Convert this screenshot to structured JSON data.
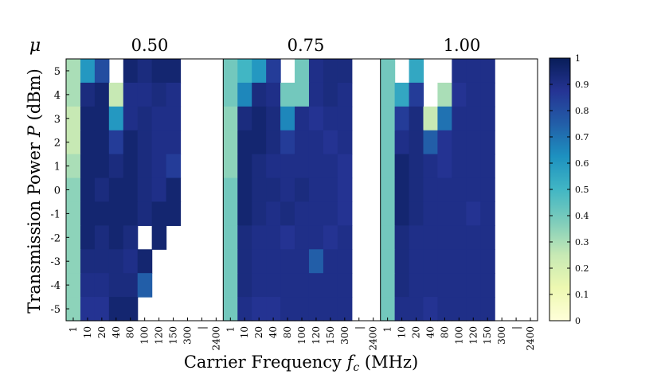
{
  "chart_data": {
    "type": "heatmap",
    "ylabel": "Transmission Power P (dBm)",
    "xlabel": "Carrier Frequency f_c (MHz)",
    "y_ticks": [
      "5",
      "4",
      "3",
      "2",
      "1",
      "0",
      "-1",
      "-2",
      "-3",
      "-4",
      "-5"
    ],
    "x_ticks": [
      "1",
      "10",
      "20",
      "40",
      "80",
      "100",
      "120",
      "150",
      "300",
      "|",
      "2400"
    ],
    "mu_label": "μ",
    "colorbar": {
      "min": 0,
      "max": 1,
      "ticks": [
        "0",
        "0.1",
        "0.2",
        "0.3",
        "0.4",
        "0.5",
        "0.6",
        "0.7",
        "0.8",
        "0.9",
        "1"
      ]
    },
    "panels": [
      {
        "title": "0.50",
        "values": [
          [
            0.3,
            0.6,
            0.8,
            null,
            0.95,
            0.92,
            0.95,
            0.95,
            null,
            null,
            null
          ],
          [
            0.3,
            0.92,
            0.95,
            0.25,
            0.9,
            0.9,
            0.92,
            0.9,
            null,
            null,
            null
          ],
          [
            0.25,
            0.95,
            0.95,
            0.6,
            0.9,
            0.92,
            0.9,
            0.9,
            null,
            null,
            null
          ],
          [
            0.25,
            0.95,
            0.95,
            0.85,
            0.95,
            0.92,
            0.9,
            0.9,
            null,
            null,
            null
          ],
          [
            0.3,
            0.95,
            0.95,
            0.92,
            0.95,
            0.92,
            0.9,
            0.85,
            null,
            null,
            null
          ],
          [
            0.35,
            0.95,
            0.92,
            0.95,
            0.95,
            0.92,
            0.9,
            0.95,
            null,
            null,
            null
          ],
          [
            0.35,
            0.95,
            0.95,
            0.95,
            0.95,
            0.92,
            0.95,
            0.95,
            null,
            null,
            null
          ],
          [
            0.35,
            0.95,
            0.92,
            0.95,
            0.92,
            null,
            0.95,
            null,
            null,
            null,
            null
          ],
          [
            0.35,
            0.92,
            0.92,
            0.92,
            0.9,
            0.95,
            null,
            null,
            null,
            null,
            null
          ],
          [
            0.35,
            0.9,
            0.9,
            0.92,
            0.92,
            0.75,
            null,
            null,
            null,
            null,
            null
          ],
          [
            0.35,
            0.88,
            0.88,
            0.95,
            0.95,
            null,
            null,
            null,
            null,
            null,
            null
          ]
        ]
      },
      {
        "title": "0.75",
        "values": [
          [
            0.4,
            0.5,
            0.6,
            0.85,
            null,
            0.4,
            0.9,
            0.92,
            0.92,
            null,
            null
          ],
          [
            0.4,
            0.65,
            0.92,
            0.9,
            0.4,
            0.4,
            0.9,
            0.92,
            0.9,
            null,
            null
          ],
          [
            0.35,
            0.92,
            0.95,
            0.92,
            0.65,
            0.9,
            0.88,
            0.9,
            0.9,
            null,
            null
          ],
          [
            0.35,
            0.95,
            0.95,
            0.92,
            0.85,
            0.9,
            0.9,
            0.88,
            0.9,
            null,
            null
          ],
          [
            0.35,
            0.95,
            0.92,
            0.9,
            0.9,
            0.9,
            0.9,
            0.9,
            0.88,
            null,
            null
          ],
          [
            0.4,
            0.95,
            0.92,
            0.92,
            0.9,
            0.92,
            0.9,
            0.9,
            0.88,
            null,
            null
          ],
          [
            0.4,
            0.95,
            0.92,
            0.9,
            0.92,
            0.9,
            0.9,
            0.9,
            0.88,
            null,
            null
          ],
          [
            0.4,
            0.92,
            0.9,
            0.9,
            0.88,
            0.9,
            0.9,
            0.88,
            0.9,
            null,
            null
          ],
          [
            0.4,
            0.92,
            0.9,
            0.9,
            0.9,
            0.9,
            0.75,
            0.9,
            0.9,
            null,
            null
          ],
          [
            0.4,
            0.92,
            0.9,
            0.9,
            0.9,
            0.9,
            0.9,
            0.9,
            0.9,
            null,
            null
          ],
          [
            0.4,
            0.9,
            0.88,
            0.88,
            0.9,
            0.9,
            0.9,
            0.9,
            0.9,
            null,
            null
          ]
        ]
      },
      {
        "title": "1.00",
        "values": [
          [
            0.4,
            null,
            0.55,
            null,
            null,
            0.9,
            0.9,
            0.9,
            null,
            null,
            null
          ],
          [
            0.4,
            0.55,
            0.85,
            null,
            0.3,
            0.88,
            0.9,
            0.9,
            null,
            null,
            null
          ],
          [
            0.4,
            0.85,
            0.92,
            0.25,
            0.7,
            0.9,
            0.9,
            0.9,
            null,
            null,
            null
          ],
          [
            0.4,
            0.9,
            0.92,
            0.75,
            0.88,
            0.9,
            0.9,
            0.9,
            null,
            null,
            null
          ],
          [
            0.4,
            0.95,
            0.92,
            0.9,
            0.88,
            0.9,
            0.9,
            0.9,
            null,
            null,
            null
          ],
          [
            0.4,
            0.95,
            0.92,
            0.9,
            0.9,
            0.9,
            0.9,
            0.9,
            null,
            null,
            null
          ],
          [
            0.4,
            0.95,
            0.92,
            0.9,
            0.9,
            0.9,
            0.88,
            0.9,
            null,
            null,
            null
          ],
          [
            0.4,
            0.92,
            0.9,
            0.9,
            0.9,
            0.9,
            0.9,
            0.9,
            null,
            null,
            null
          ],
          [
            0.4,
            0.92,
            0.9,
            0.9,
            0.9,
            0.9,
            0.9,
            0.9,
            null,
            null,
            null
          ],
          [
            0.4,
            0.92,
            0.9,
            0.9,
            0.9,
            0.9,
            0.9,
            0.9,
            null,
            null,
            null
          ],
          [
            0.4,
            0.9,
            0.9,
            0.88,
            0.9,
            0.9,
            0.9,
            0.9,
            null,
            null,
            null
          ]
        ]
      }
    ]
  }
}
